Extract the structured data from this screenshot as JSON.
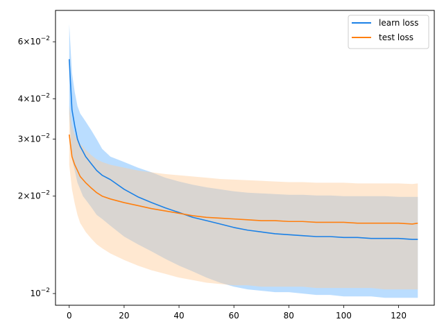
{
  "chart_data": {
    "type": "line",
    "title": "",
    "xlabel": "",
    "ylabel": "",
    "xlim": [
      -5,
      133
    ],
    "ylim": [
      0.0092,
      0.075
    ],
    "yscale": "log",
    "grid": false,
    "legend_position": "top-right",
    "x_ticks": [
      {
        "value": 0,
        "label": "0"
      },
      {
        "value": 20,
        "label": "20"
      },
      {
        "value": 40,
        "label": "40"
      },
      {
        "value": 60,
        "label": "60"
      },
      {
        "value": 80,
        "label": "80"
      },
      {
        "value": 100,
        "label": "100"
      },
      {
        "value": 120,
        "label": "120"
      }
    ],
    "y_ticks": [
      {
        "value": 0.01,
        "base": "10",
        "exp": "−2",
        "mant": ""
      },
      {
        "value": 0.02,
        "base": "10",
        "exp": "−2",
        "mant": "2×"
      },
      {
        "value": 0.03,
        "base": "10",
        "exp": "−2",
        "mant": "3×"
      },
      {
        "value": 0.04,
        "base": "10",
        "exp": "−2",
        "mant": "4×"
      },
      {
        "value": 0.06,
        "base": "10",
        "exp": "−2",
        "mant": "6×"
      }
    ],
    "series": [
      {
        "name": "learn loss",
        "color": "#1a80e6",
        "band_color": "#66b3ff",
        "x": [
          0,
          1,
          2,
          3,
          4,
          5,
          6,
          8,
          10,
          12,
          15,
          20,
          25,
          30,
          35,
          40,
          45,
          50,
          55,
          60,
          65,
          70,
          75,
          80,
          85,
          90,
          95,
          100,
          105,
          110,
          115,
          120,
          125,
          127
        ],
        "y": [
          0.053,
          0.037,
          0.033,
          0.03,
          0.0285,
          0.0275,
          0.0265,
          0.0252,
          0.024,
          0.0232,
          0.0225,
          0.021,
          0.0199,
          0.0191,
          0.0184,
          0.0178,
          0.0172,
          0.0168,
          0.0164,
          0.016,
          0.0157,
          0.0155,
          0.0153,
          0.0152,
          0.0151,
          0.015,
          0.015,
          0.0149,
          0.0149,
          0.0148,
          0.0148,
          0.0148,
          0.0147,
          0.0147
        ],
        "upper": [
          0.068,
          0.048,
          0.042,
          0.038,
          0.036,
          0.035,
          0.034,
          0.032,
          0.03,
          0.028,
          0.0265,
          0.0255,
          0.0245,
          0.0237,
          0.0228,
          0.0222,
          0.0217,
          0.0213,
          0.021,
          0.0207,
          0.0205,
          0.0204,
          0.0203,
          0.0202,
          0.0202,
          0.0201,
          0.0201,
          0.02,
          0.02,
          0.02,
          0.02,
          0.0199,
          0.0199,
          0.0199
        ],
        "lower": [
          0.036,
          0.026,
          0.024,
          0.022,
          0.021,
          0.02,
          0.0195,
          0.0185,
          0.0175,
          0.017,
          0.0162,
          0.015,
          0.0142,
          0.0135,
          0.0128,
          0.0122,
          0.0117,
          0.0112,
          0.0108,
          0.0105,
          0.0103,
          0.0102,
          0.0101,
          0.0101,
          0.01,
          0.0099,
          0.0099,
          0.0098,
          0.0098,
          0.0098,
          0.0097,
          0.0097,
          0.0097,
          0.0097
        ]
      },
      {
        "name": "test loss",
        "color": "#ff7f0e",
        "band_color": "#ffcc99",
        "x": [
          0,
          1,
          2,
          3,
          4,
          5,
          6,
          8,
          10,
          12,
          15,
          20,
          25,
          30,
          35,
          40,
          45,
          50,
          55,
          60,
          65,
          70,
          75,
          80,
          85,
          90,
          95,
          100,
          105,
          110,
          115,
          120,
          125,
          127
        ],
        "y": [
          0.031,
          0.0265,
          0.025,
          0.024,
          0.023,
          0.0225,
          0.022,
          0.0212,
          0.0205,
          0.02,
          0.0196,
          0.0191,
          0.0187,
          0.0183,
          0.018,
          0.0177,
          0.0174,
          0.0172,
          0.0171,
          0.017,
          0.0169,
          0.0168,
          0.0168,
          0.0167,
          0.0167,
          0.0166,
          0.0166,
          0.0166,
          0.0165,
          0.0165,
          0.0165,
          0.0165,
          0.0164,
          0.0165
        ],
        "upper": [
          0.038,
          0.033,
          0.031,
          0.03,
          0.029,
          0.0285,
          0.0278,
          0.0268,
          0.026,
          0.0255,
          0.025,
          0.0245,
          0.024,
          0.0237,
          0.0234,
          0.0232,
          0.023,
          0.0228,
          0.0226,
          0.0225,
          0.0224,
          0.0223,
          0.0222,
          0.0221,
          0.0221,
          0.022,
          0.022,
          0.022,
          0.0219,
          0.0219,
          0.0219,
          0.0219,
          0.0218,
          0.0219
        ],
        "lower": [
          0.025,
          0.021,
          0.019,
          0.0175,
          0.0165,
          0.016,
          0.0155,
          0.0148,
          0.0142,
          0.0138,
          0.0133,
          0.0127,
          0.0122,
          0.0118,
          0.0115,
          0.0112,
          0.011,
          0.0108,
          0.0107,
          0.0106,
          0.0106,
          0.0105,
          0.0105,
          0.0105,
          0.0105,
          0.0104,
          0.0104,
          0.0104,
          0.0104,
          0.0104,
          0.0103,
          0.0103,
          0.0103,
          0.0103
        ]
      }
    ]
  }
}
